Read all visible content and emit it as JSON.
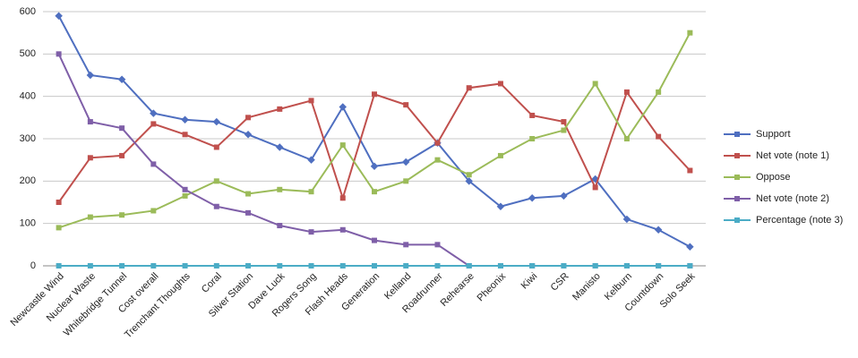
{
  "chart_data": {
    "type": "line",
    "categories": [
      "Newcastle Wind",
      "Nuclear Waste",
      "Whitebridge Tunnel",
      "Cost overall",
      "Trenchant Thoughts",
      "Coral",
      "Silver Station",
      "Dave Luck",
      "Rogers Song",
      "Flash Heads",
      "Generation",
      "Kelland",
      "Roadrunner",
      "Rehearse",
      "Pheonix",
      "Kiwi",
      "CSR",
      "Manisto",
      "Kelburn",
      "Countdown",
      "Solo Seek"
    ],
    "series": [
      {
        "name": "Support",
        "color": "#4f6fc0",
        "values": [
          590,
          450,
          440,
          360,
          345,
          340,
          310,
          280,
          250,
          375,
          235,
          245,
          290,
          200,
          140,
          160,
          165,
          205,
          110,
          85,
          45
        ]
      },
      {
        "name": "Net vote (note 1)",
        "color": "#c0504d",
        "values": [
          150,
          255,
          260,
          335,
          310,
          280,
          350,
          370,
          390,
          160,
          405,
          380,
          290,
          420,
          430,
          355,
          340,
          185,
          410,
          305,
          225
        ]
      },
      {
        "name": "Oppose",
        "color": "#9bbb59",
        "values": [
          90,
          115,
          120,
          130,
          165,
          200,
          170,
          180,
          175,
          285,
          175,
          200,
          250,
          215,
          260,
          300,
          320,
          430,
          300,
          410,
          550
        ]
      },
      {
        "name": "Net vote (note 2)",
        "color": "#7f5fa8",
        "values": [
          500,
          340,
          325,
          240,
          180,
          140,
          125,
          95,
          80,
          85,
          60,
          50,
          50,
          0,
          0,
          0,
          0,
          0,
          0,
          0,
          0
        ]
      },
      {
        "name": "Percentage (note 3)",
        "color": "#4bacc6",
        "values": [
          0,
          0,
          0,
          0,
          0,
          0,
          0,
          0,
          0,
          0,
          0,
          0,
          0,
          0,
          0,
          0,
          0,
          0,
          0,
          0,
          0
        ]
      }
    ],
    "ylim": [
      0,
      600
    ],
    "yticks": [
      0,
      100,
      200,
      300,
      400,
      500,
      600
    ],
    "grid": true,
    "legend": "right"
  }
}
